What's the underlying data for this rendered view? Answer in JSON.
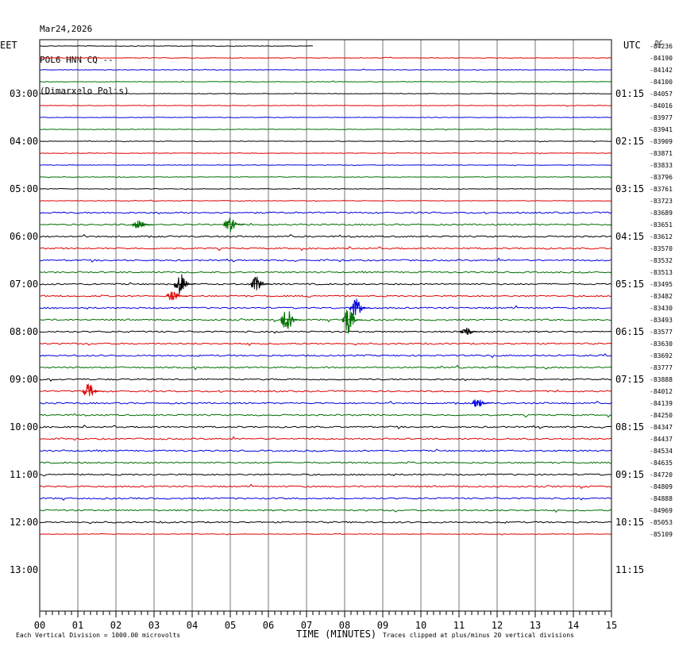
{
  "header": {
    "date": "Mar24,2026",
    "station": "POL6 HNN CQ --",
    "location": "(Dimarxelo Polis)"
  },
  "chart_data": {
    "type": "line",
    "plot_kind": "helicorder",
    "left_timezone_label": "EET",
    "right_timezone_label": "UTC",
    "top_right_label": "DC",
    "xlabel": "TIME (MINUTES)",
    "x_ticks": [
      "00",
      "01",
      "02",
      "03",
      "04",
      "05",
      "06",
      "07",
      "08",
      "09",
      "10",
      "11",
      "12",
      "13",
      "14",
      "15"
    ],
    "xlim": [
      0,
      15
    ],
    "left_hour_labels": [
      "03:00",
      "04:00",
      "05:00",
      "06:00",
      "07:00",
      "08:00",
      "09:00",
      "10:00",
      "11:00",
      "12:00",
      "13:00"
    ],
    "right_hour_labels": [
      "01:15",
      "02:15",
      "03:15",
      "04:15",
      "05:15",
      "06:15",
      "07:15",
      "08:15",
      "09:15",
      "10:15",
      "11:15"
    ],
    "line_colors": [
      "#000000",
      "#e00000",
      "#0000e0",
      "#007000"
    ],
    "grid": true,
    "footer_left": "Each Vertical Division = 1000.00 microvolts",
    "footer_right": "Traces clipped at plus/minus 20 vertical divisions",
    "dc_offsets": [
      "-84236",
      "-84190",
      "-84142",
      "-84100",
      "-84057",
      "-84016",
      "-83977",
      "-83941",
      "-83909",
      "-83871",
      "-83833",
      "-83796",
      "-83761",
      "-83723",
      "-83689",
      "-83651",
      "-83612",
      "-83570",
      "-83532",
      "-83513",
      "-83495",
      "-83482",
      "-83430",
      "-83493",
      "-83577",
      "-83630",
      "-83692",
      "-83777",
      "-83888",
      "-84012",
      "-84139",
      "-84250",
      "-84347",
      "-84437",
      "-84534",
      "-84635",
      "-84720",
      "-84809",
      "-84888",
      "-84969",
      "-85053",
      "-85109"
    ],
    "events": [
      {
        "row": 15,
        "minute": 2.7,
        "amplitude": 6
      },
      {
        "row": 15,
        "minute": 5.1,
        "amplitude": 10
      },
      {
        "row": 20,
        "minute": 3.8,
        "amplitude": 14
      },
      {
        "row": 20,
        "minute": 5.8,
        "amplitude": 10
      },
      {
        "row": 21,
        "minute": 3.6,
        "amplitude": 6
      },
      {
        "row": 22,
        "minute": 8.4,
        "amplitude": 12
      },
      {
        "row": 23,
        "minute": 6.6,
        "amplitude": 18
      },
      {
        "row": 23,
        "minute": 8.2,
        "amplitude": 18
      },
      {
        "row": 24,
        "minute": 11.3,
        "amplitude": 6
      },
      {
        "row": 29,
        "minute": 1.4,
        "amplitude": 10
      },
      {
        "row": 30,
        "minute": 11.6,
        "amplitude": 6
      }
    ]
  }
}
